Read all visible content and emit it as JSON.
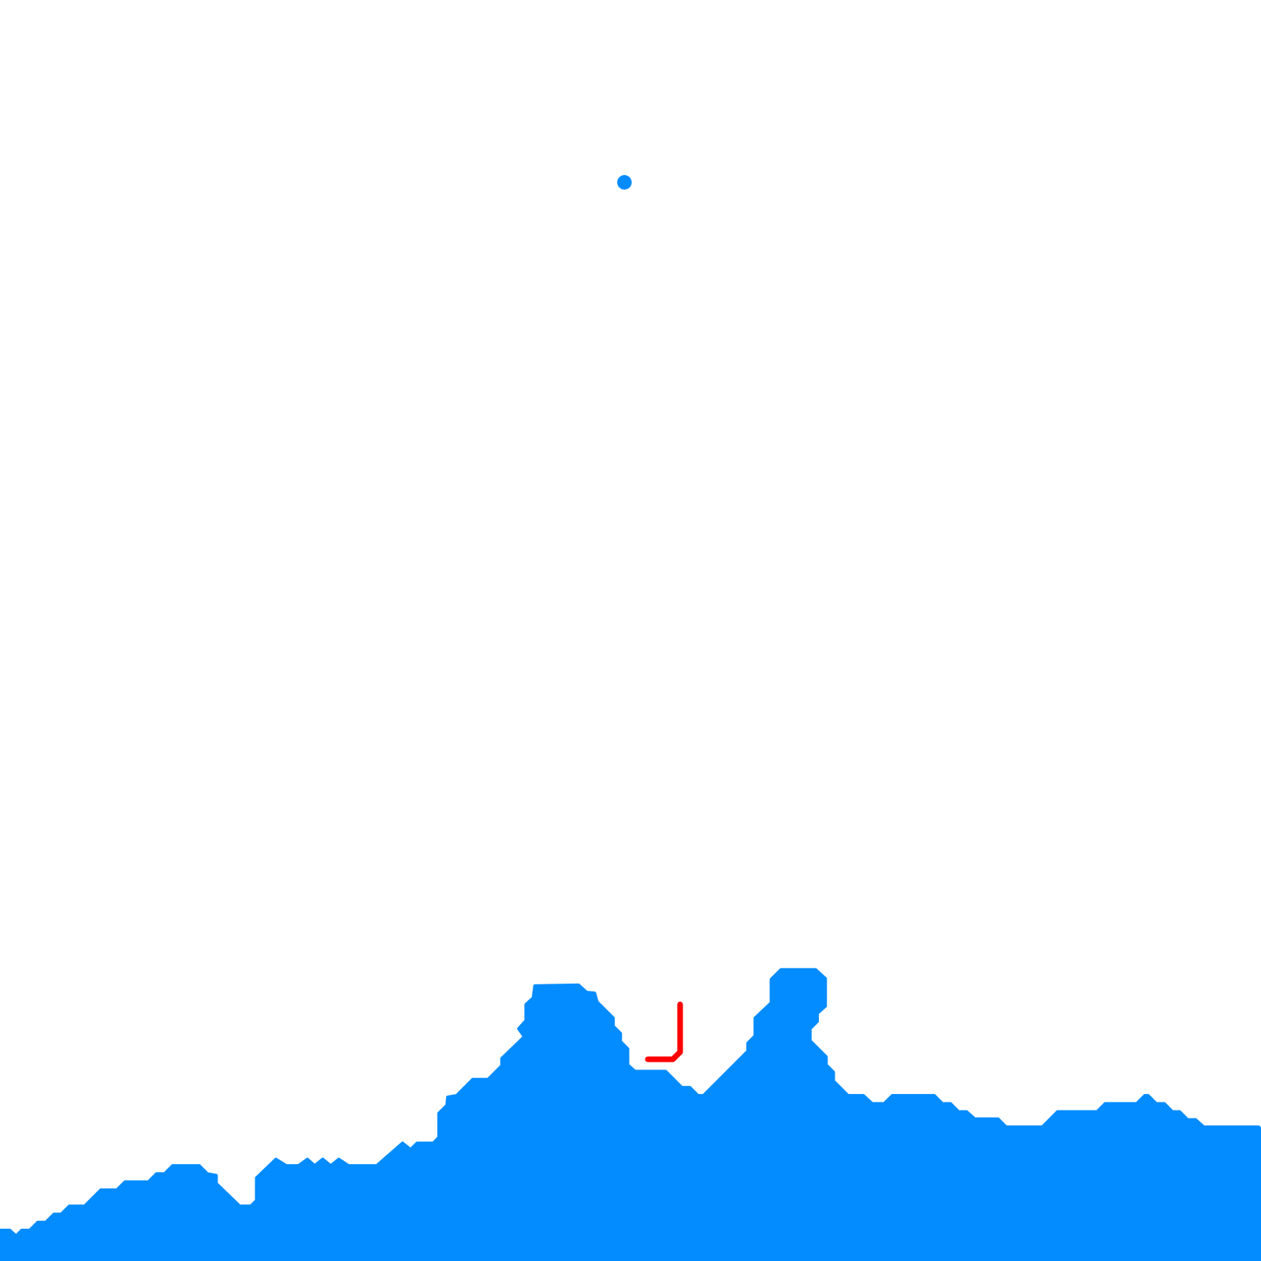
{
  "colors": {
    "background": "#ffffff",
    "terrain": "#038cff",
    "player": "#038cff",
    "path": "#ff0000"
  },
  "icons": {
    "player": "circle",
    "path": "polyline"
  }
}
